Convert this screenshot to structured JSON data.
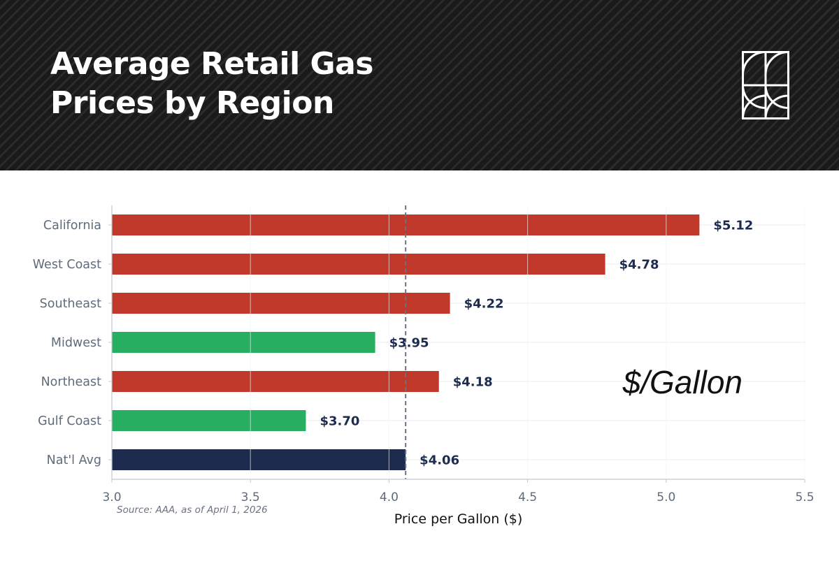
{
  "header": {
    "title": "Average Retail Gas\nPrices by Region"
  },
  "logo": {
    "icon": "geometric-logo-icon"
  },
  "chart_data": {
    "type": "bar",
    "orientation": "horizontal",
    "title": "Average Retail Gas Prices by Region",
    "xlabel": "Price per Gallon ($)",
    "ylabel": "",
    "xlim": [
      3.0,
      5.5
    ],
    "xticks": [
      "3.0",
      "3.5",
      "4.0",
      "4.5",
      "5.0",
      "5.5"
    ],
    "categories": [
      "California",
      "West Coast",
      "Southeast",
      "Midwest",
      "Northeast",
      "Gulf Coast",
      "Nat'l Avg"
    ],
    "values": [
      5.12,
      4.78,
      4.22,
      3.95,
      4.18,
      3.7,
      4.06
    ],
    "value_labels": [
      "$5.12",
      "$4.78",
      "$4.22",
      "$3.95",
      "$4.18",
      "$3.70",
      "$4.06"
    ],
    "bar_colors": [
      "#c0392b",
      "#c0392b",
      "#c0392b",
      "#27ae60",
      "#c0392b",
      "#27ae60",
      "#1d2b4f"
    ],
    "reference_line": {
      "value": 4.06,
      "style": "dashed",
      "color": "#6b7280"
    },
    "grid": true,
    "annotation": "$/Gallon",
    "source": "Source: AAA, as of April 1, 2026"
  }
}
